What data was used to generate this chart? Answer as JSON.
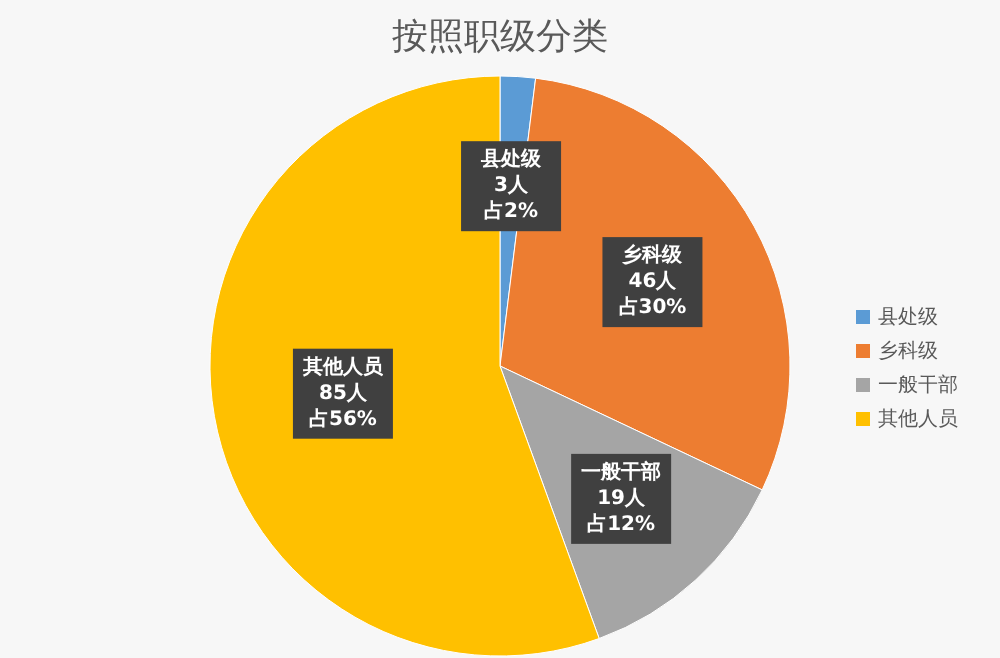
{
  "chart_data": {
    "type": "pie",
    "title": "按照职级分类",
    "categories": [
      "县处级",
      "乡科级",
      "一般干部",
      "其他人员"
    ],
    "values": [
      3,
      46,
      19,
      85
    ],
    "colors": [
      "#5b9bd5",
      "#ed7d31",
      "#a5a5a5",
      "#ffc000"
    ],
    "value_labels": [
      "县处级3人占2%",
      "乡科级46人占30%",
      "一般干部19人占12%",
      "其他人员85人占56%"
    ],
    "legend": "right"
  }
}
